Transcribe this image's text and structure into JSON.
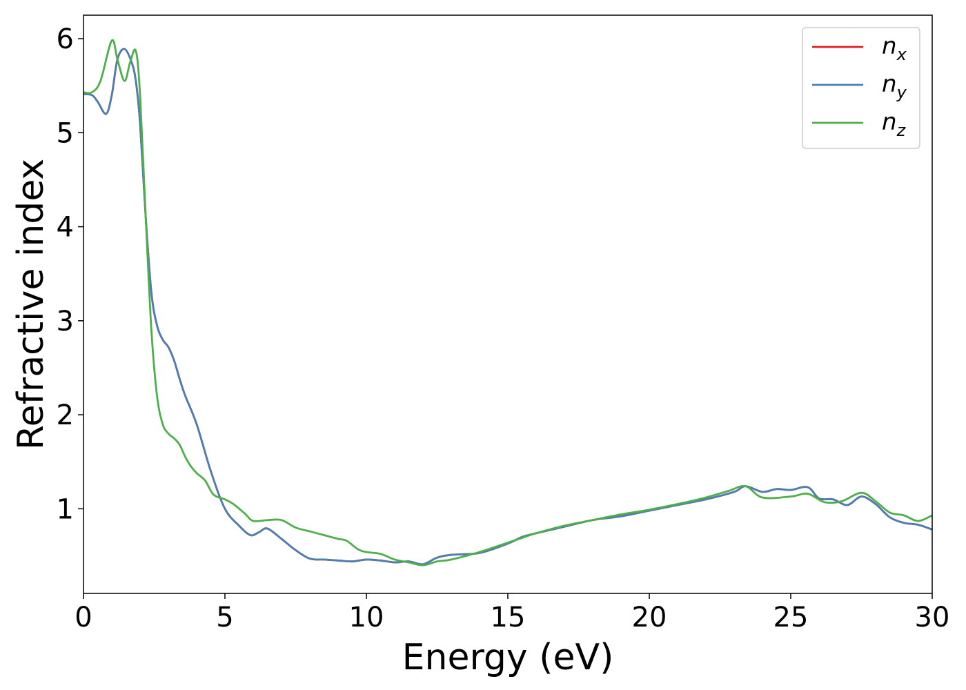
{
  "chart_data": {
    "type": "line",
    "title": "",
    "xlabel": "Energy (eV)",
    "ylabel": "Refractive index",
    "xlim": [
      0,
      30
    ],
    "ylim": [
      0.1,
      6.25
    ],
    "xticks": [
      0,
      5,
      10,
      15,
      20,
      25,
      30
    ],
    "xtick_labels": [
      "0",
      "5",
      "10",
      "15",
      "20",
      "25",
      "30"
    ],
    "yticks": [
      1,
      2,
      3,
      4,
      5,
      6
    ],
    "ytick_labels": [
      "1",
      "2",
      "3",
      "4",
      "5",
      "6"
    ],
    "grid": false,
    "legend_position": "top-right",
    "series": [
      {
        "name": "n",
        "subscript": "x",
        "color": "#e41a1c",
        "x": [
          0,
          0.3,
          0.5,
          0.8,
          1.0,
          1.2,
          1.45,
          1.7,
          1.85,
          2.0,
          2.2,
          2.4,
          2.6,
          2.8,
          3.0,
          3.2,
          3.4,
          3.6,
          4.0,
          4.5,
          5.0,
          5.5,
          5.9,
          6.2,
          6.5,
          7.0,
          7.5,
          8.0,
          8.5,
          9.0,
          9.5,
          10.0,
          10.5,
          11.0,
          11.5,
          12.0,
          12.5,
          13.0,
          14.0,
          15.0,
          15.5,
          16.0,
          17.0,
          18.0,
          19.0,
          20.0,
          21.0,
          22.0,
          23.0,
          23.4,
          24.0,
          24.5,
          25.0,
          25.6,
          26.0,
          26.5,
          27.0,
          27.5,
          28.0,
          28.5,
          29.0,
          29.5,
          30.0
        ],
        "y": [
          5.41,
          5.4,
          5.33,
          5.2,
          5.4,
          5.78,
          5.89,
          5.75,
          5.55,
          5.1,
          4.1,
          3.3,
          2.95,
          2.8,
          2.72,
          2.58,
          2.38,
          2.2,
          1.9,
          1.4,
          1.0,
          0.82,
          0.72,
          0.75,
          0.79,
          0.68,
          0.56,
          0.47,
          0.46,
          0.45,
          0.44,
          0.46,
          0.45,
          0.43,
          0.44,
          0.41,
          0.48,
          0.51,
          0.53,
          0.63,
          0.7,
          0.74,
          0.81,
          0.88,
          0.92,
          0.98,
          1.04,
          1.1,
          1.18,
          1.24,
          1.18,
          1.21,
          1.2,
          1.23,
          1.11,
          1.1,
          1.04,
          1.13,
          1.05,
          0.91,
          0.85,
          0.83,
          0.78
        ]
      },
      {
        "name": "n",
        "subscript": "y",
        "color": "#4a7eb5",
        "x": [
          0,
          0.3,
          0.5,
          0.8,
          1.0,
          1.2,
          1.45,
          1.7,
          1.85,
          2.0,
          2.2,
          2.4,
          2.6,
          2.8,
          3.0,
          3.2,
          3.4,
          3.6,
          4.0,
          4.5,
          5.0,
          5.5,
          5.9,
          6.2,
          6.5,
          7.0,
          7.5,
          8.0,
          8.5,
          9.0,
          9.5,
          10.0,
          10.5,
          11.0,
          11.5,
          12.0,
          12.5,
          13.0,
          14.0,
          15.0,
          15.5,
          16.0,
          17.0,
          18.0,
          19.0,
          20.0,
          21.0,
          22.0,
          23.0,
          23.4,
          24.0,
          24.5,
          25.0,
          25.6,
          26.0,
          26.5,
          27.0,
          27.5,
          28.0,
          28.5,
          29.0,
          29.5,
          30.0
        ],
        "y": [
          5.41,
          5.4,
          5.33,
          5.2,
          5.4,
          5.78,
          5.89,
          5.75,
          5.55,
          5.1,
          4.1,
          3.3,
          2.95,
          2.8,
          2.72,
          2.58,
          2.38,
          2.2,
          1.9,
          1.4,
          1.0,
          0.82,
          0.72,
          0.75,
          0.79,
          0.68,
          0.56,
          0.47,
          0.46,
          0.45,
          0.44,
          0.46,
          0.45,
          0.43,
          0.44,
          0.41,
          0.48,
          0.51,
          0.53,
          0.63,
          0.7,
          0.74,
          0.81,
          0.88,
          0.92,
          0.98,
          1.04,
          1.1,
          1.18,
          1.24,
          1.18,
          1.21,
          1.2,
          1.23,
          1.11,
          1.1,
          1.04,
          1.13,
          1.05,
          0.91,
          0.85,
          0.83,
          0.78
        ]
      },
      {
        "name": "n",
        "subscript": "z",
        "color": "#4daf4a",
        "x": [
          0,
          0.3,
          0.6,
          1.0,
          1.2,
          1.45,
          1.65,
          1.85,
          2.0,
          2.2,
          2.4,
          2.6,
          2.8,
          3.0,
          3.2,
          3.4,
          3.6,
          3.8,
          4.0,
          4.3,
          4.6,
          5.0,
          5.3,
          5.7,
          6.0,
          6.5,
          7.0,
          7.5,
          8.0,
          8.5,
          9.0,
          9.3,
          9.7,
          10.0,
          10.5,
          11.0,
          11.5,
          12.0,
          12.5,
          13.0,
          14.0,
          15.0,
          15.5,
          16.0,
          17.0,
          18.0,
          19.0,
          20.0,
          21.0,
          22.0,
          22.8,
          23.4,
          24.0,
          25.0,
          25.6,
          26.2,
          26.8,
          27.5,
          28.0,
          28.5,
          29.0,
          29.5,
          30.0
        ],
        "y": [
          5.43,
          5.43,
          5.55,
          5.98,
          5.78,
          5.55,
          5.75,
          5.87,
          5.4,
          4.1,
          2.9,
          2.2,
          1.9,
          1.8,
          1.75,
          1.68,
          1.55,
          1.45,
          1.38,
          1.3,
          1.15,
          1.1,
          1.05,
          0.95,
          0.87,
          0.88,
          0.88,
          0.8,
          0.76,
          0.72,
          0.68,
          0.66,
          0.57,
          0.54,
          0.52,
          0.46,
          0.43,
          0.4,
          0.44,
          0.46,
          0.54,
          0.64,
          0.69,
          0.74,
          0.82,
          0.88,
          0.94,
          0.99,
          1.05,
          1.12,
          1.19,
          1.24,
          1.12,
          1.13,
          1.16,
          1.07,
          1.08,
          1.17,
          1.08,
          0.96,
          0.93,
          0.87,
          0.93
        ]
      }
    ]
  }
}
